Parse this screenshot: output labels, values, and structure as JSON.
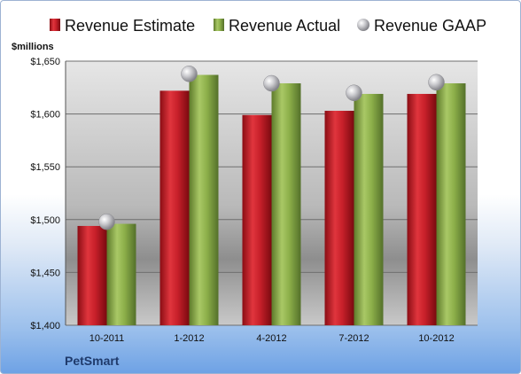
{
  "chart_data": {
    "type": "bar",
    "categories": [
      "10-2011",
      "1-2012",
      "4-2012",
      "7-2012",
      "10-2012"
    ],
    "series": [
      {
        "name": "Revenue Estimate",
        "values": [
          1494,
          1622,
          1599,
          1603,
          1619
        ]
      },
      {
        "name": "Revenue Actual",
        "values": [
          1496,
          1637,
          1629,
          1619,
          1629
        ]
      },
      {
        "name": "Revenue GAAP",
        "values": [
          1498,
          1638,
          1629,
          1620,
          1630
        ],
        "marker": "circle"
      }
    ],
    "ylabel": "$millions",
    "ylim": [
      1400,
      1650
    ],
    "yticks": [
      1400,
      1450,
      1500,
      1550,
      1600,
      1650
    ],
    "ytick_labels": [
      "$1,400",
      "$1,450",
      "$1,500",
      "$1,550",
      "$1,600",
      "$1,650"
    ],
    "grid": true,
    "legend_position": "top",
    "colors": {
      "estimate": "#c8202a",
      "actual": "#8db04a",
      "gaap": "#b8b8bc"
    }
  },
  "company": "PetSmart"
}
